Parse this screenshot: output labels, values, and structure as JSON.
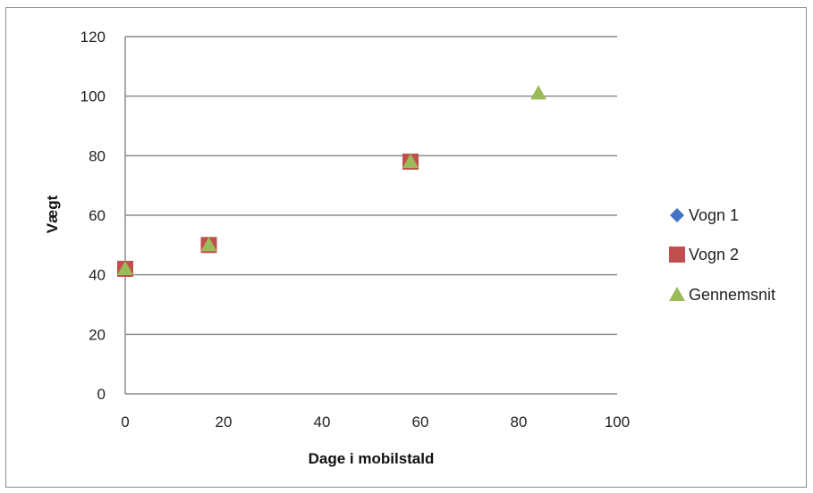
{
  "chart_data": {
    "type": "scatter",
    "xlabel": "Dage i mobilstald",
    "ylabel": "Vægt",
    "xlim": [
      0,
      100
    ],
    "ylim": [
      0,
      120
    ],
    "xticks": [
      "0",
      "20",
      "40",
      "60",
      "80",
      "100"
    ],
    "yticks": [
      "0",
      "20",
      "40",
      "60",
      "80",
      "100",
      "120"
    ],
    "grid": "horizontal",
    "legend_position": "right",
    "series": [
      {
        "name": "Vogn 1",
        "marker": "diamond",
        "color": "#4472c4",
        "x": [
          0,
          17,
          58
        ],
        "y": [
          42,
          50,
          78
        ]
      },
      {
        "name": "Vogn 2",
        "marker": "square",
        "color": "#c0504d",
        "x": [
          0,
          17,
          58
        ],
        "y": [
          42,
          50,
          78
        ]
      },
      {
        "name": "Gennemsnit",
        "marker": "triangle",
        "color": "#9bbb59",
        "x": [
          0,
          17,
          58,
          84
        ],
        "y": [
          42,
          50,
          78,
          101
        ]
      }
    ]
  }
}
